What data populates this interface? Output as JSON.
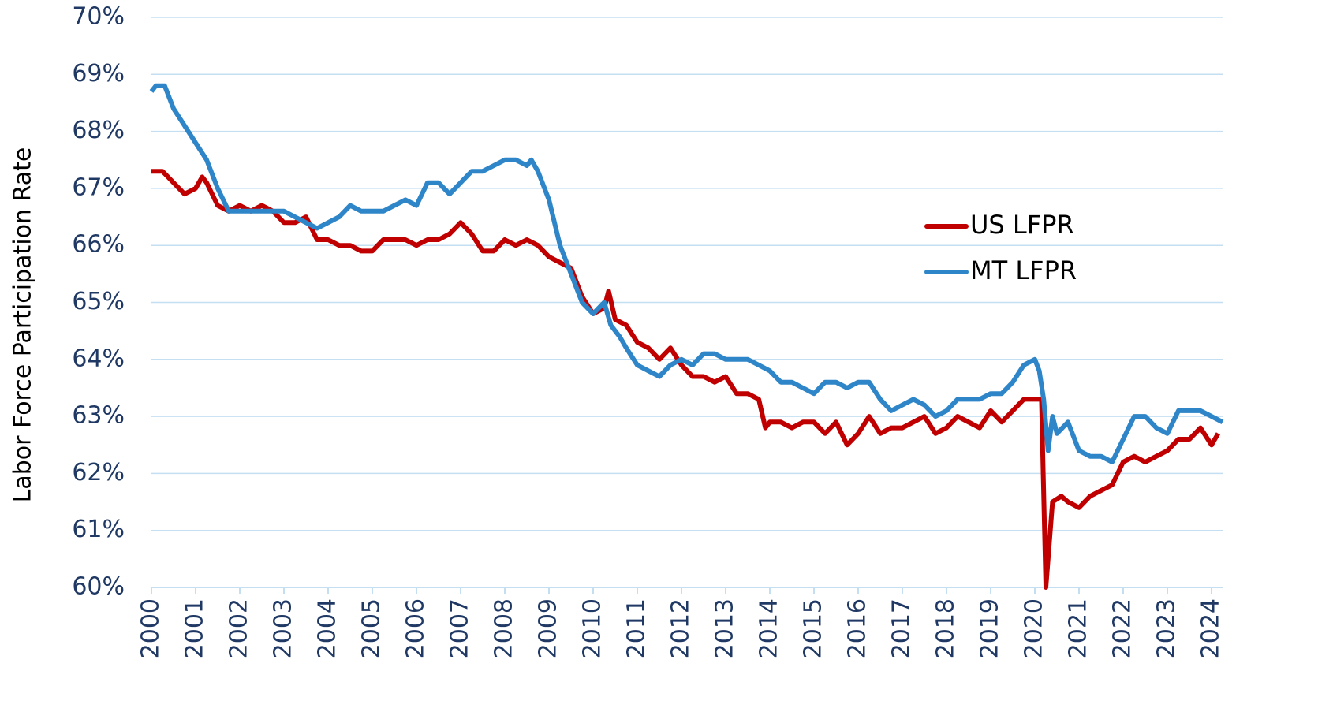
{
  "chart_data": {
    "type": "line",
    "y_label": "Labor Force Participation Rate",
    "xlim": [
      2000,
      2024.25
    ],
    "xticks": [
      2000,
      2001,
      2002,
      2003,
      2004,
      2005,
      2006,
      2007,
      2008,
      2009,
      2010,
      2011,
      2012,
      2013,
      2014,
      2015,
      2016,
      2017,
      2018,
      2019,
      2020,
      2021,
      2022,
      2023,
      2024
    ],
    "ylim": [
      60,
      70
    ],
    "yticks": [
      {
        "value": 60,
        "label": "60%"
      },
      {
        "value": 61,
        "label": "61%"
      },
      {
        "value": 62,
        "label": "62%"
      },
      {
        "value": 63,
        "label": "63%"
      },
      {
        "value": 64,
        "label": "64%"
      },
      {
        "value": 65,
        "label": "65%"
      },
      {
        "value": 66,
        "label": "66%"
      },
      {
        "value": 67,
        "label": "67%"
      },
      {
        "value": 68,
        "label": "68%"
      },
      {
        "value": 69,
        "label": "69%"
      },
      {
        "value": 70,
        "label": "70%"
      }
    ],
    "grid": true,
    "legend": "right",
    "series": [
      {
        "name": "US LFPR",
        "color": "#c00000",
        "x": [
          2000,
          2000.25,
          2000.5,
          2000.75,
          2001,
          2001.15,
          2001.25,
          2001.5,
          2001.75,
          2002,
          2002.25,
          2002.5,
          2002.75,
          2003,
          2003.25,
          2003.5,
          2003.75,
          2004,
          2004.25,
          2004.5,
          2004.75,
          2005,
          2005.25,
          2005.5,
          2005.75,
          2006,
          2006.25,
          2006.5,
          2006.75,
          2007,
          2007.25,
          2007.5,
          2007.75,
          2008,
          2008.25,
          2008.5,
          2008.75,
          2009,
          2009.25,
          2009.5,
          2009.75,
          2010,
          2010.25,
          2010.35,
          2010.5,
          2010.75,
          2011,
          2011.25,
          2011.5,
          2011.75,
          2012,
          2012.25,
          2012.5,
          2012.75,
          2013,
          2013.25,
          2013.5,
          2013.75,
          2013.9,
          2014,
          2014.25,
          2014.5,
          2014.75,
          2015,
          2015.25,
          2015.5,
          2015.75,
          2016,
          2016.25,
          2016.5,
          2016.75,
          2017,
          2017.25,
          2017.5,
          2017.75,
          2018,
          2018.25,
          2018.5,
          2018.75,
          2019,
          2019.25,
          2019.5,
          2019.75,
          2020,
          2020.15,
          2020.25,
          2020.4,
          2020.6,
          2020.75,
          2021,
          2021.25,
          2021.5,
          2021.75,
          2022,
          2022.25,
          2022.5,
          2022.75,
          2023,
          2023.25,
          2023.5,
          2023.75,
          2024,
          2024.15
        ],
        "values": [
          67.3,
          67.3,
          67.1,
          66.9,
          67.0,
          67.2,
          67.1,
          66.7,
          66.6,
          66.7,
          66.6,
          66.7,
          66.6,
          66.4,
          66.4,
          66.5,
          66.1,
          66.1,
          66.0,
          66.0,
          65.9,
          65.9,
          66.1,
          66.1,
          66.1,
          66.0,
          66.1,
          66.1,
          66.2,
          66.4,
          66.2,
          65.9,
          65.9,
          66.1,
          66.0,
          66.1,
          66.0,
          65.8,
          65.7,
          65.6,
          65.1,
          64.8,
          64.9,
          65.2,
          64.7,
          64.6,
          64.3,
          64.2,
          64.0,
          64.2,
          63.9,
          63.7,
          63.7,
          63.6,
          63.7,
          63.4,
          63.4,
          63.3,
          62.8,
          62.9,
          62.9,
          62.8,
          62.9,
          62.9,
          62.7,
          62.9,
          62.5,
          62.7,
          63.0,
          62.7,
          62.8,
          62.8,
          62.9,
          63.0,
          62.7,
          62.8,
          63.0,
          62.9,
          62.8,
          63.1,
          62.9,
          63.1,
          63.3,
          63.3,
          63.3,
          60.0,
          61.5,
          61.6,
          61.5,
          61.4,
          61.6,
          61.7,
          61.8,
          62.2,
          62.3,
          62.2,
          62.3,
          62.4,
          62.6,
          62.6,
          62.8,
          62.5,
          62.7
        ]
      },
      {
        "name": "MT LFPR",
        "color": "#2e86c8",
        "x": [
          2000,
          2000.1,
          2000.3,
          2000.5,
          2000.75,
          2001,
          2001.25,
          2001.5,
          2001.75,
          2002,
          2002.5,
          2003,
          2003.25,
          2003.5,
          2003.75,
          2004,
          2004.25,
          2004.5,
          2004.75,
          2005,
          2005.25,
          2005.5,
          2005.75,
          2006,
          2006.25,
          2006.5,
          2006.75,
          2007,
          2007.25,
          2007.5,
          2007.75,
          2008,
          2008.25,
          2008.5,
          2008.6,
          2008.75,
          2009,
          2009.25,
          2009.5,
          2009.75,
          2010,
          2010.25,
          2010.4,
          2010.6,
          2010.75,
          2011,
          2011.25,
          2011.5,
          2011.75,
          2012,
          2012.25,
          2012.5,
          2012.75,
          2013,
          2013.5,
          2013.75,
          2014,
          2014.25,
          2014.5,
          2014.75,
          2015,
          2015.25,
          2015.5,
          2015.75,
          2016,
          2016.25,
          2016.5,
          2016.75,
          2017,
          2017.25,
          2017.5,
          2017.75,
          2018,
          2018.25,
          2018.5,
          2018.75,
          2019,
          2019.25,
          2019.5,
          2019.75,
          2020,
          2020.1,
          2020.2,
          2020.3,
          2020.4,
          2020.5,
          2020.75,
          2021,
          2021.25,
          2021.5,
          2021.75,
          2022,
          2022.25,
          2022.5,
          2022.75,
          2023,
          2023.25,
          2023.5,
          2023.75,
          2024,
          2024.25
        ],
        "values": [
          68.7,
          68.8,
          68.8,
          68.4,
          68.1,
          67.8,
          67.5,
          67.0,
          66.6,
          66.6,
          66.6,
          66.6,
          66.5,
          66.4,
          66.3,
          66.4,
          66.5,
          66.7,
          66.6,
          66.6,
          66.6,
          66.7,
          66.8,
          66.7,
          67.1,
          67.1,
          66.9,
          67.1,
          67.3,
          67.3,
          67.4,
          67.5,
          67.5,
          67.4,
          67.5,
          67.3,
          66.8,
          66.0,
          65.5,
          65.0,
          64.8,
          65.0,
          64.6,
          64.4,
          64.2,
          63.9,
          63.8,
          63.7,
          63.9,
          64.0,
          63.9,
          64.1,
          64.1,
          64.0,
          64.0,
          63.9,
          63.8,
          63.6,
          63.6,
          63.5,
          63.4,
          63.6,
          63.6,
          63.5,
          63.6,
          63.6,
          63.3,
          63.1,
          63.2,
          63.3,
          63.2,
          63.0,
          63.1,
          63.3,
          63.3,
          63.3,
          63.4,
          63.4,
          63.6,
          63.9,
          64.0,
          63.8,
          63.3,
          62.4,
          63.0,
          62.7,
          62.9,
          62.4,
          62.3,
          62.3,
          62.2,
          62.6,
          63.0,
          63.0,
          62.8,
          62.7,
          63.1,
          63.1,
          63.1,
          63.0,
          62.9
        ]
      }
    ]
  }
}
